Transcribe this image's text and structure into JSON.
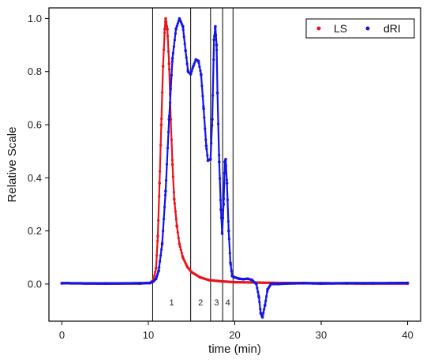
{
  "chart_data": {
    "type": "scatter",
    "xlabel": "time (min)",
    "ylabel": "Relative Scale",
    "xlim": [
      -1.5,
      41.5
    ],
    "ylim": [
      -0.14,
      1.04
    ],
    "xticks": [
      0,
      10,
      20,
      30,
      40
    ],
    "xtick_labels": [
      "0",
      "10",
      "20",
      "30",
      "40"
    ],
    "yticks": [
      0.0,
      0.2,
      0.4,
      0.6,
      0.8,
      1.0
    ],
    "ytick_labels": [
      "0.0",
      "0.2",
      "0.4",
      "0.6",
      "0.8",
      "1.0"
    ],
    "legend": {
      "position": "top-right",
      "entries": [
        "LS",
        "dRI"
      ]
    },
    "vertical_lines": [
      10.5,
      14.9,
      17.2,
      18.6,
      19.8
    ],
    "regions": [
      {
        "label": "1",
        "x": 12.7
      },
      {
        "label": "2",
        "x": 16.05
      },
      {
        "label": "3",
        "x": 17.9
      },
      {
        "label": "4",
        "x": 19.2
      }
    ],
    "series": [
      {
        "name": "LS",
        "color": "#e8141c",
        "points": [
          [
            0,
            0.003
          ],
          [
            5,
            0.002
          ],
          [
            9,
            0.002
          ],
          [
            10.2,
            0.004
          ],
          [
            10.6,
            0.015
          ],
          [
            10.9,
            0.06
          ],
          [
            11.1,
            0.18
          ],
          [
            11.3,
            0.38
          ],
          [
            11.5,
            0.6
          ],
          [
            11.7,
            0.82
          ],
          [
            11.9,
            0.96
          ],
          [
            12.0,
            1.0
          ],
          [
            12.2,
            0.96
          ],
          [
            12.4,
            0.83
          ],
          [
            12.6,
            0.62
          ],
          [
            12.8,
            0.45
          ],
          [
            13.0,
            0.32
          ],
          [
            13.3,
            0.22
          ],
          [
            13.6,
            0.15
          ],
          [
            14.0,
            0.1
          ],
          [
            14.5,
            0.065
          ],
          [
            15.0,
            0.045
          ],
          [
            16.0,
            0.025
          ],
          [
            17.0,
            0.015
          ],
          [
            18.5,
            0.01
          ],
          [
            20,
            0.007
          ],
          [
            25,
            0.004
          ],
          [
            30,
            0.003
          ],
          [
            35,
            0.002
          ],
          [
            40,
            0.002
          ]
        ]
      },
      {
        "name": "dRI",
        "color": "#1414e6",
        "points": [
          [
            0,
            0.003
          ],
          [
            5,
            0.002
          ],
          [
            9,
            0.003
          ],
          [
            10.2,
            0.004
          ],
          [
            10.6,
            0.01
          ],
          [
            10.9,
            0.02
          ],
          [
            11.2,
            0.05
          ],
          [
            11.6,
            0.15
          ],
          [
            12.0,
            0.35
          ],
          [
            12.4,
            0.62
          ],
          [
            12.8,
            0.85
          ],
          [
            13.2,
            0.96
          ],
          [
            13.6,
            1.0
          ],
          [
            14.0,
            0.97
          ],
          [
            14.3,
            0.88
          ],
          [
            14.6,
            0.8
          ],
          [
            14.9,
            0.79
          ],
          [
            15.2,
            0.82
          ],
          [
            15.5,
            0.845
          ],
          [
            15.8,
            0.84
          ],
          [
            16.1,
            0.79
          ],
          [
            16.4,
            0.66
          ],
          [
            16.7,
            0.52
          ],
          [
            16.9,
            0.465
          ],
          [
            17.2,
            0.47
          ],
          [
            17.4,
            0.62
          ],
          [
            17.6,
            0.92
          ],
          [
            17.75,
            0.97
          ],
          [
            17.9,
            0.9
          ],
          [
            18.0,
            0.72
          ],
          [
            18.2,
            0.46
          ],
          [
            18.4,
            0.28
          ],
          [
            18.55,
            0.19
          ],
          [
            18.7,
            0.3
          ],
          [
            18.85,
            0.46
          ],
          [
            18.95,
            0.47
          ],
          [
            19.1,
            0.38
          ],
          [
            19.3,
            0.2
          ],
          [
            19.5,
            0.08
          ],
          [
            19.7,
            0.03
          ],
          [
            20.0,
            0.025
          ],
          [
            20.5,
            0.02
          ],
          [
            21.0,
            0.018
          ],
          [
            21.5,
            0.02
          ],
          [
            22.0,
            0.015
          ],
          [
            22.5,
            0.0
          ],
          [
            22.8,
            -0.05
          ],
          [
            23.0,
            -0.11
          ],
          [
            23.2,
            -0.125
          ],
          [
            23.5,
            -0.08
          ],
          [
            23.8,
            -0.02
          ],
          [
            24.2,
            0.0
          ],
          [
            25,
            0.0
          ],
          [
            26,
            0.002
          ],
          [
            28,
            0.003
          ],
          [
            30,
            0.002
          ],
          [
            33,
            0.003
          ],
          [
            36,
            0.003
          ],
          [
            40,
            0.004
          ]
        ]
      }
    ]
  }
}
